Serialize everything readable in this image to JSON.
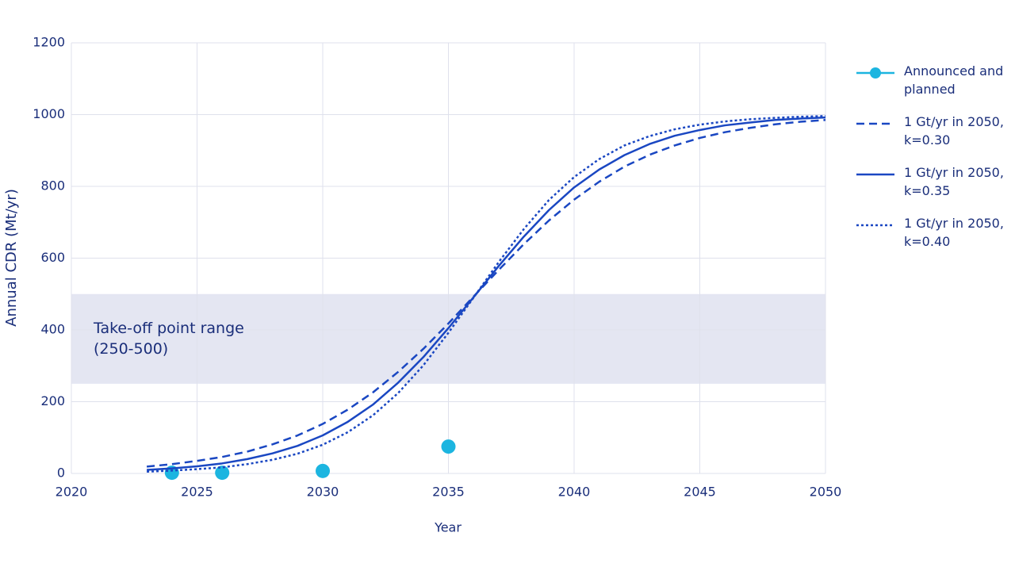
{
  "chart_data": {
    "type": "line",
    "xlabel": "Year",
    "ylabel": "Annual CDR (Mt/yr)",
    "xlim": [
      2020,
      2050
    ],
    "ylim": [
      0,
      1200
    ],
    "xticks": [
      2020,
      2025,
      2030,
      2035,
      2040,
      2045,
      2050
    ],
    "yticks": [
      0,
      200,
      400,
      600,
      800,
      1000,
      1200
    ],
    "grid": true,
    "band": {
      "label": "Take-off point range (250-500)",
      "range": [
        250,
        500
      ],
      "color": "#e4e6f2"
    },
    "series": [
      {
        "name": "Announced and planned",
        "color": "#1cb5e0",
        "style": "markers",
        "x": [
          2024,
          2026,
          2030,
          2035
        ],
        "values": [
          2,
          2,
          7,
          75
        ]
      },
      {
        "name": "1 Gt/yr in 2050, k=0.30",
        "color": "#1a47c2",
        "style": "dashed",
        "x": [
          2023,
          2024,
          2025,
          2026,
          2027,
          2028,
          2029,
          2030,
          2031,
          2032,
          2033,
          2034,
          2035,
          2036,
          2037,
          2038,
          2039,
          2040,
          2041,
          2042,
          2043,
          2044,
          2045,
          2046,
          2047,
          2048,
          2049,
          2050
        ],
        "values": [
          19,
          26,
          35,
          46,
          61,
          81,
          106,
          138,
          178,
          226,
          283,
          347,
          418,
          493,
          567,
          639,
          705,
          763,
          813,
          855,
          888,
          914,
          935,
          951,
          963,
          973,
          980,
          985
        ]
      },
      {
        "name": "1 Gt/yr in 2050, k=0.35",
        "color": "#1a47c2",
        "style": "solid",
        "x": [
          2023,
          2024,
          2025,
          2026,
          2027,
          2028,
          2029,
          2030,
          2031,
          2032,
          2033,
          2034,
          2035,
          2036,
          2037,
          2038,
          2039,
          2040,
          2041,
          2042,
          2043,
          2044,
          2045,
          2046,
          2047,
          2048,
          2049,
          2050
        ],
        "values": [
          10,
          14,
          20,
          28,
          40,
          56,
          77,
          106,
          144,
          192,
          253,
          324,
          405,
          491,
          578,
          660,
          734,
          797,
          847,
          887,
          918,
          941,
          957,
          970,
          978,
          985,
          989,
          992
        ]
      },
      {
        "name": "1 Gt/yr in 2050, k=0.40",
        "color": "#1a47c2",
        "style": "dotted",
        "x": [
          2023,
          2024,
          2025,
          2026,
          2027,
          2028,
          2029,
          2030,
          2031,
          2032,
          2033,
          2034,
          2035,
          2036,
          2037,
          2038,
          2039,
          2040,
          2041,
          2042,
          2043,
          2044,
          2045,
          2046,
          2047,
          2048,
          2049,
          2050
        ],
        "values": [
          5,
          8,
          12,
          17,
          26,
          38,
          55,
          80,
          115,
          162,
          224,
          301,
          392,
          490,
          589,
          681,
          762,
          826,
          876,
          914,
          940,
          959,
          972,
          981,
          987,
          991,
          994,
          996
        ]
      }
    ]
  }
}
